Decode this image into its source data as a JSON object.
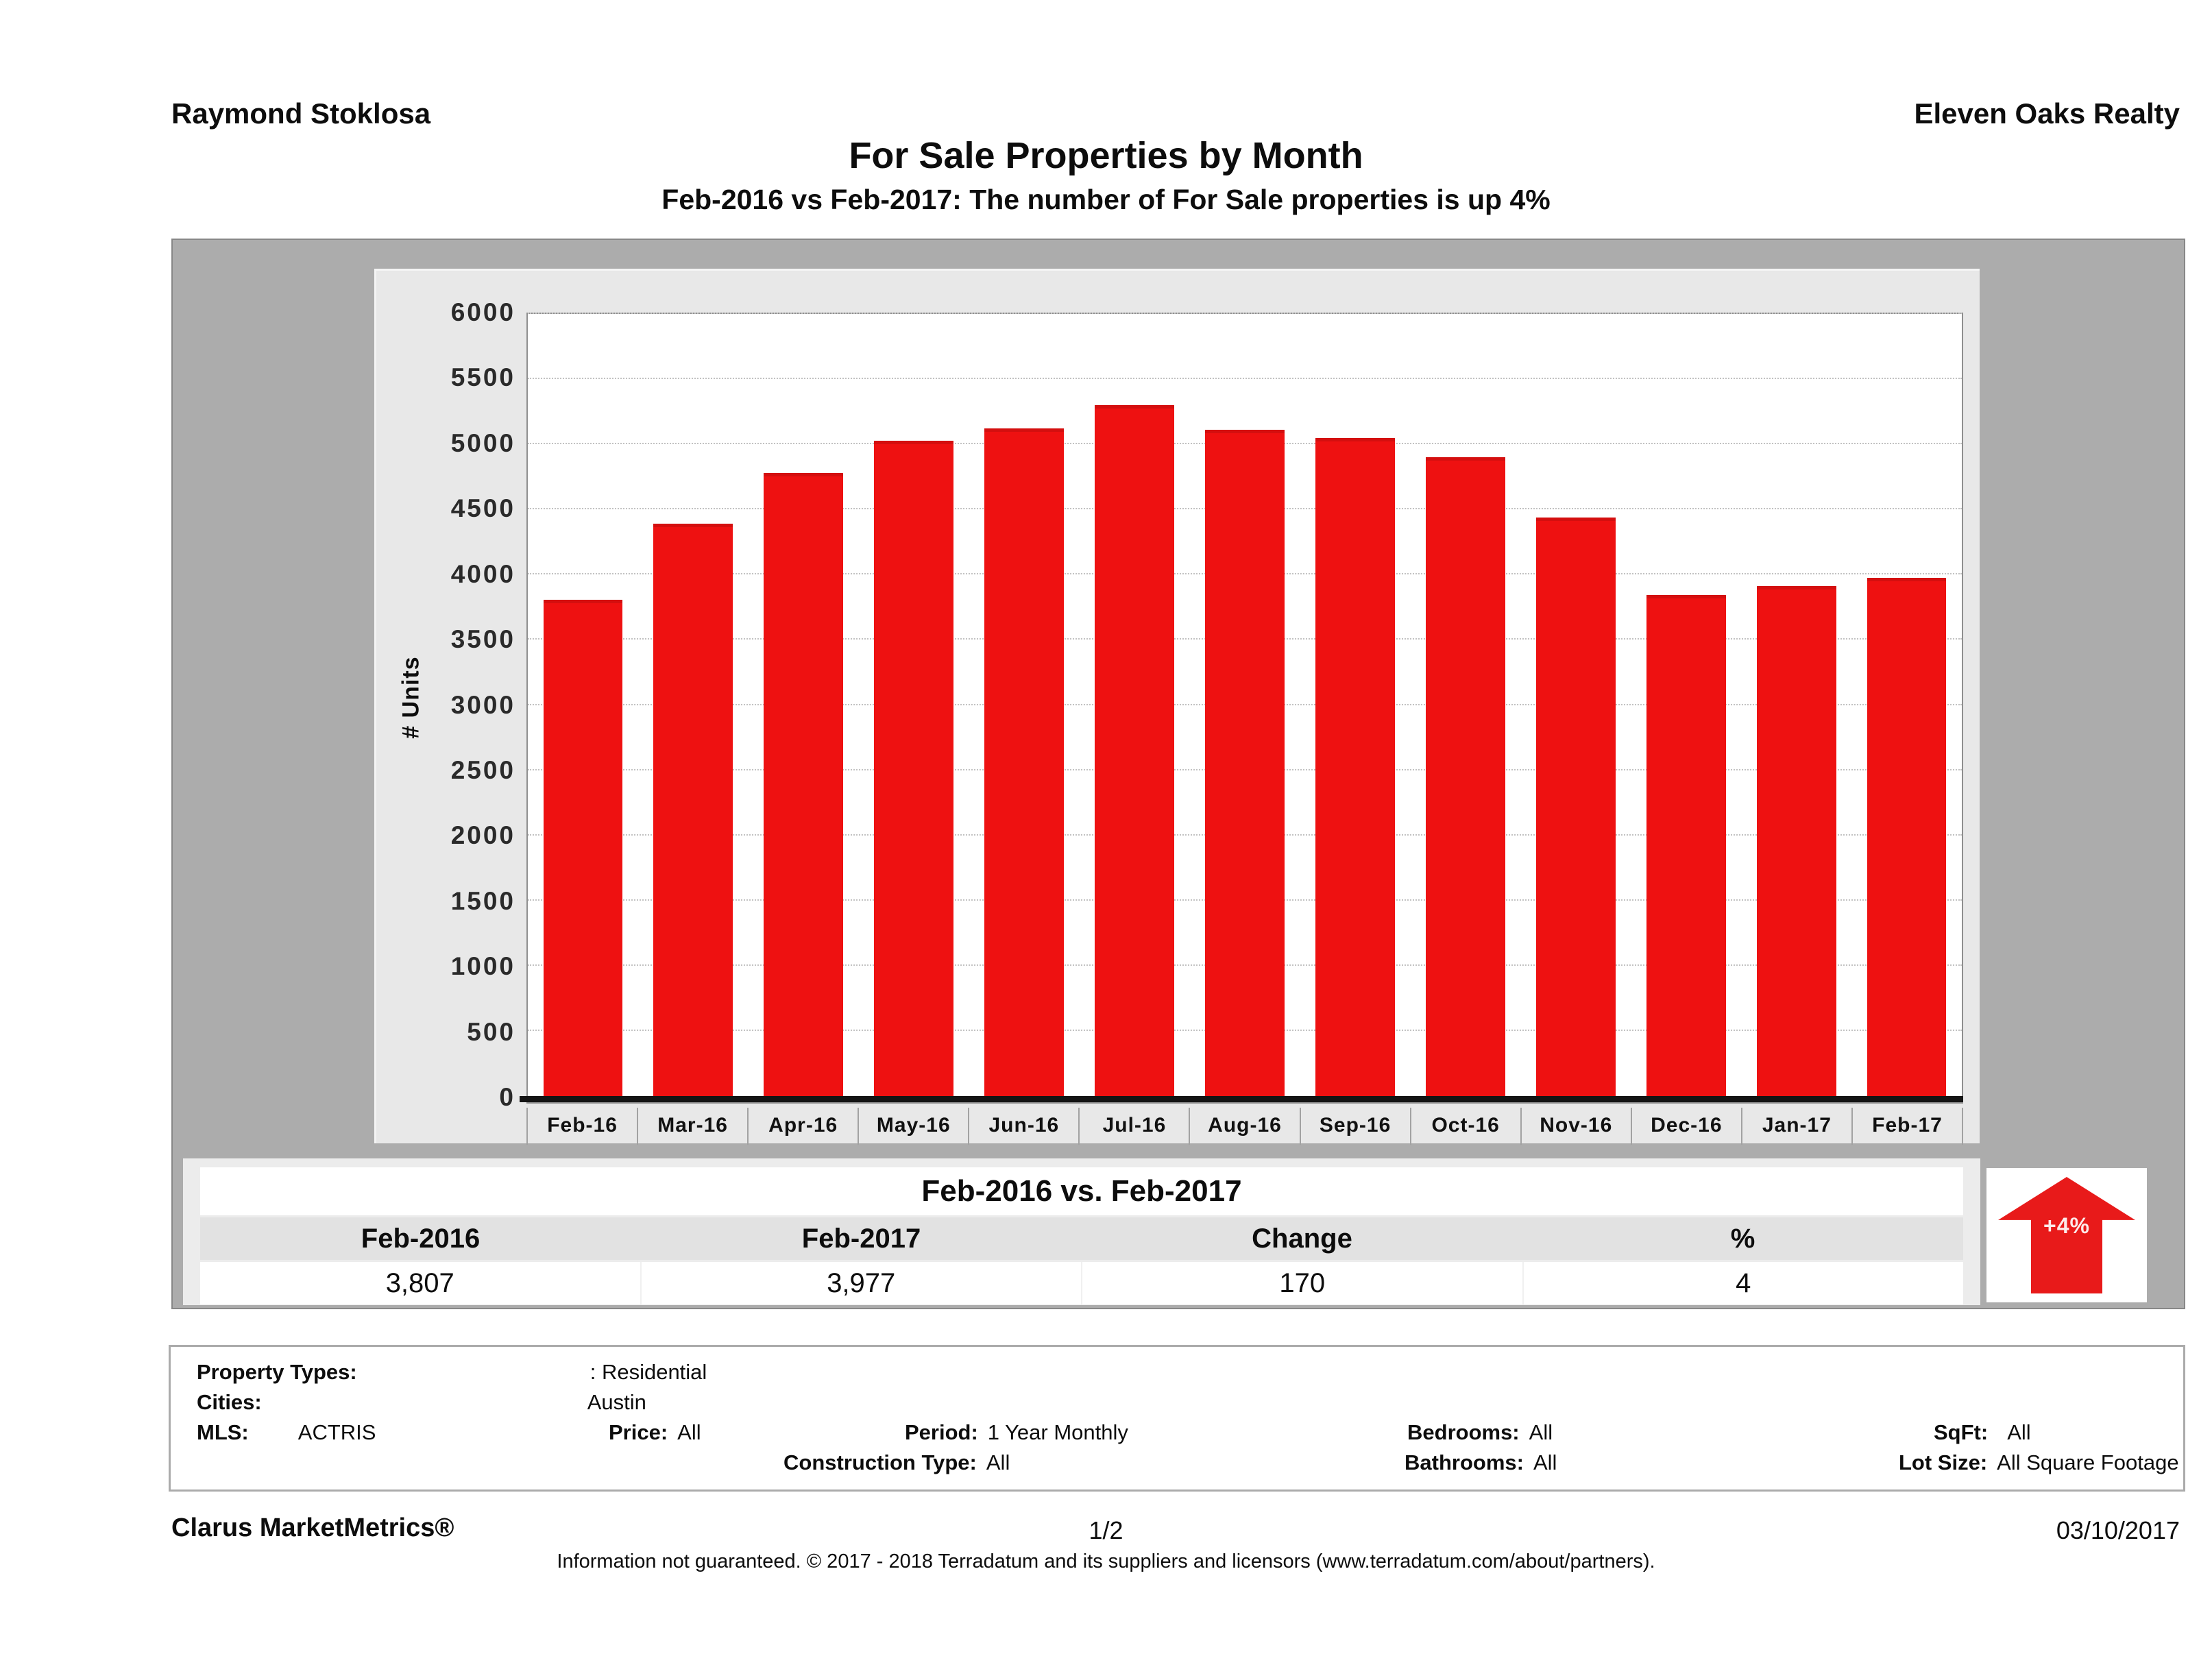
{
  "header": {
    "agent": "Raymond Stoklosa",
    "brokerage": "Eleven Oaks Realty",
    "title": "For Sale Properties by Month",
    "subtitle": "Feb-2016 vs Feb-2017: The number of For Sale properties is up 4%"
  },
  "chart_data": {
    "type": "bar",
    "title": "For Sale Properties by Month",
    "xlabel": "",
    "ylabel": "# Units",
    "ylim": [
      0,
      6000
    ],
    "yticks": [
      0,
      500,
      1000,
      1500,
      2000,
      2500,
      3000,
      3500,
      4000,
      4500,
      5000,
      5500,
      6000
    ],
    "grid": "dotted-horizontal",
    "legend": "none",
    "categories": [
      "Feb-16",
      "Mar-16",
      "Apr-16",
      "May-16",
      "Jun-16",
      "Jul-16",
      "Aug-16",
      "Sep-16",
      "Oct-16",
      "Nov-16",
      "Dec-16",
      "Jan-17",
      "Feb-17"
    ],
    "values": [
      3807,
      4390,
      4780,
      5025,
      5120,
      5300,
      5110,
      5050,
      4900,
      4440,
      3845,
      3915,
      3977
    ],
    "bar_color": "#ee1111"
  },
  "comparison": {
    "title": "Feb-2016 vs. Feb-2017",
    "headers": [
      "Feb-2016",
      "Feb-2017",
      "Change",
      "%"
    ],
    "values": [
      "3,807",
      "3,977",
      "170",
      "4"
    ],
    "badge": {
      "label": "+4%",
      "direction": "up",
      "color": "#e81a1a"
    }
  },
  "filters": {
    "property_types_label": "Property Types:",
    "property_types_value": ": Residential",
    "cities_label": "Cities:",
    "cities_value": "Austin",
    "mls_label": "MLS:",
    "mls_value": "ACTRIS",
    "price_label": "Price:",
    "price_value": "All",
    "period_label": "Period:",
    "period_value": "1 Year Monthly",
    "construction_label": "Construction Type:",
    "construction_value": "All",
    "bedrooms_label": "Bedrooms:",
    "bedrooms_value": "All",
    "bathrooms_label": "Bathrooms:",
    "bathrooms_value": "All",
    "sqft_label": "SqFt:",
    "sqft_value": "All",
    "lot_size_label": "Lot Size:",
    "lot_size_value": "All Square Footage"
  },
  "footer": {
    "brand": "Clarus MarketMetrics®",
    "page_number": "1/2",
    "date": "03/10/2017",
    "disclaimer": "Information not guaranteed. © 2017 - 2018 Terradatum and its suppliers and licensors (www.terradatum.com/about/partners)."
  },
  "colors": {
    "bar_red": "#ee1111",
    "panel_gray": "#acacac",
    "chart_box_gray": "#e8e8e8",
    "strip_gray": "#ececec"
  }
}
